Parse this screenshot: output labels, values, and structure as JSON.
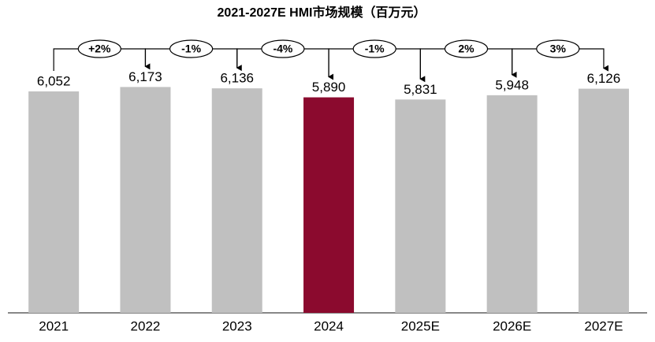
{
  "chart_data": {
    "type": "bar",
    "title": "2021-2027E HMI市场规模（百万元）",
    "categories": [
      "2021",
      "2022",
      "2023",
      "2024",
      "2025E",
      "2026E",
      "2027E"
    ],
    "values": [
      6052,
      6173,
      6136,
      5890,
      5831,
      5948,
      6126
    ],
    "value_labels": [
      "6,052",
      "6,173",
      "6,136",
      "5,890",
      "5,831",
      "5,948",
      "6,126"
    ],
    "colors": [
      "#c0c0c0",
      "#c0c0c0",
      "#c0c0c0",
      "#8b0a2e",
      "#c0c0c0",
      "#c0c0c0",
      "#c0c0c0"
    ],
    "growth_labels": [
      "+2%",
      "-1%",
      "-4%",
      "-1%",
      "2%",
      "3%"
    ],
    "ylim": [
      0,
      7000
    ]
  }
}
